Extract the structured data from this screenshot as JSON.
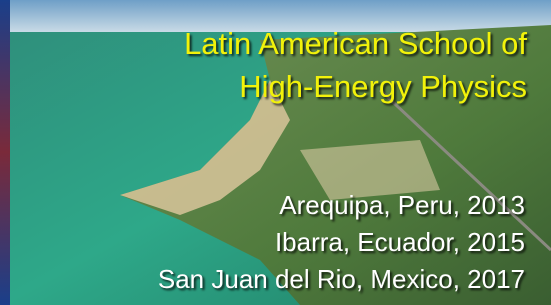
{
  "title": {
    "lines": [
      "Latin American School of",
      "High-Energy Physics"
    ]
  },
  "schools": [
    "Arequipa, Peru, 2013",
    "Ibarra, Ecuador, 2015",
    "San Juan del Rio, Mexico, 2017"
  ]
}
